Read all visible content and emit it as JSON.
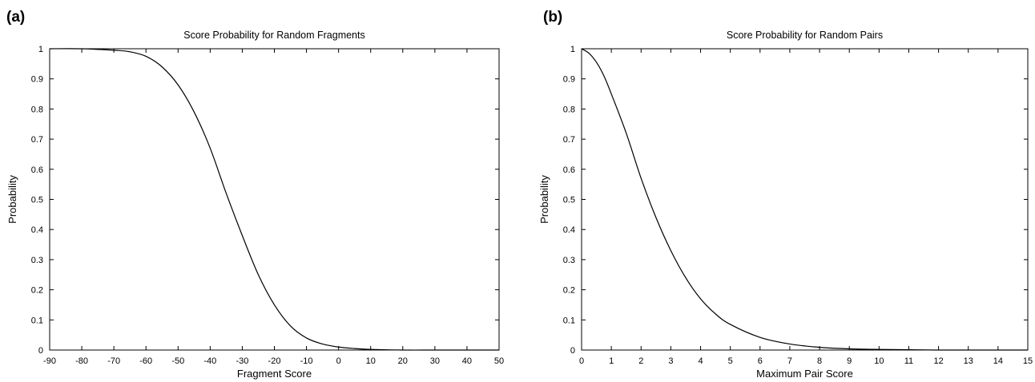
{
  "chart_data": [
    {
      "type": "line",
      "panel_label": "(a)",
      "title": "Score Probability for Random Fragments",
      "xlabel": "Fragment Score",
      "ylabel": "Probability",
      "xlim": [
        -90,
        50
      ],
      "ylim": [
        0,
        1
      ],
      "xticks": [
        -90,
        -80,
        -70,
        -60,
        -50,
        -40,
        -30,
        -20,
        -10,
        0,
        10,
        20,
        30,
        40,
        50
      ],
      "yticks": [
        0,
        0.1,
        0.2,
        0.3,
        0.4,
        0.5,
        0.6,
        0.7,
        0.8,
        0.9,
        1
      ],
      "grid": false,
      "series": [
        {
          "color": "#000000",
          "x": [
            -90,
            -80,
            -70,
            -65,
            -60,
            -55,
            -50,
            -45,
            -40,
            -35,
            -30,
            -25,
            -20,
            -15,
            -10,
            -5,
            0,
            5,
            10,
            20,
            30,
            40,
            50
          ],
          "y": [
            1.0,
            1.0,
            0.995,
            0.99,
            0.975,
            0.94,
            0.88,
            0.79,
            0.67,
            0.52,
            0.38,
            0.25,
            0.15,
            0.08,
            0.04,
            0.02,
            0.01,
            0.005,
            0.002,
            0.0,
            0.0,
            0.0,
            0.0
          ]
        }
      ]
    },
    {
      "type": "line",
      "panel_label": "(b)",
      "title": "Score Probability for Random Pairs",
      "xlabel": "Maximum Pair Score",
      "ylabel": "Probability",
      "xlim": [
        0,
        15
      ],
      "ylim": [
        0,
        1
      ],
      "xticks": [
        0,
        1,
        2,
        3,
        4,
        5,
        6,
        7,
        8,
        9,
        10,
        11,
        12,
        13,
        14,
        15
      ],
      "yticks": [
        0,
        0.1,
        0.2,
        0.3,
        0.4,
        0.5,
        0.6,
        0.7,
        0.8,
        0.9,
        1
      ],
      "grid": false,
      "series": [
        {
          "color": "#000000",
          "x": [
            0,
            0.25,
            0.5,
            0.75,
            1,
            1.5,
            2,
            2.5,
            3,
            3.5,
            4,
            4.5,
            5,
            6,
            7,
            8,
            9,
            10,
            11,
            12,
            13,
            14,
            15
          ],
          "y": [
            1.0,
            0.985,
            0.955,
            0.91,
            0.85,
            0.72,
            0.57,
            0.44,
            0.33,
            0.24,
            0.17,
            0.12,
            0.085,
            0.042,
            0.02,
            0.009,
            0.004,
            0.002,
            0.001,
            0.0,
            0.0,
            0.0,
            0.0
          ]
        }
      ]
    }
  ]
}
